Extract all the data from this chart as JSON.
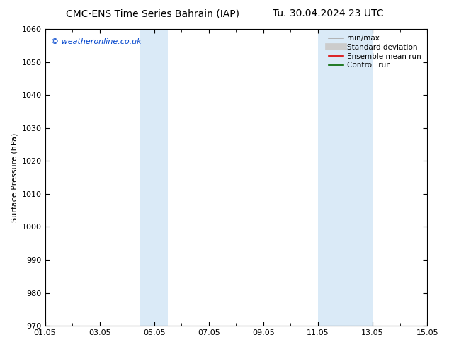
{
  "title_left": "CMC-ENS Time Series Bahrain (IAP)",
  "title_right": "Tu. 30.04.2024 23 UTC",
  "ylabel": "Surface Pressure (hPa)",
  "ylim": [
    970,
    1060
  ],
  "yticks": [
    970,
    980,
    990,
    1000,
    1010,
    1020,
    1030,
    1040,
    1050,
    1060
  ],
  "xlim_start": 0,
  "xlim_end": 14,
  "xtick_positions": [
    0,
    2,
    4,
    6,
    8,
    10,
    12,
    14
  ],
  "xtick_labels": [
    "01.05",
    "03.05",
    "05.05",
    "07.05",
    "09.05",
    "11.05",
    "13.05",
    "15.05"
  ],
  "shade_bands": [
    {
      "xmin": 3.5,
      "xmax": 4.5
    },
    {
      "xmin": 10.0,
      "xmax": 12.0
    }
  ],
  "shade_color": "#daeaf7",
  "watermark": "© weatheronline.co.uk",
  "watermark_color": "#0044cc",
  "legend_items": [
    {
      "label": "min/max",
      "color": "#aaaaaa",
      "lw": 1.2,
      "style": "-",
      "type": "line"
    },
    {
      "label": "Standard deviation",
      "color": "#cccccc",
      "lw": 7,
      "style": "-",
      "type": "line"
    },
    {
      "label": "Ensemble mean run",
      "color": "#dd0000",
      "lw": 1.2,
      "style": "-",
      "type": "line"
    },
    {
      "label": "Controll run",
      "color": "#006600",
      "lw": 1.2,
      "style": "-",
      "type": "line"
    }
  ],
  "bg_color": "#ffffff",
  "plot_bg_color": "#ffffff",
  "title_fontsize": 10,
  "axis_label_fontsize": 8,
  "tick_fontsize": 8,
  "watermark_fontsize": 8,
  "legend_fontsize": 7.5
}
